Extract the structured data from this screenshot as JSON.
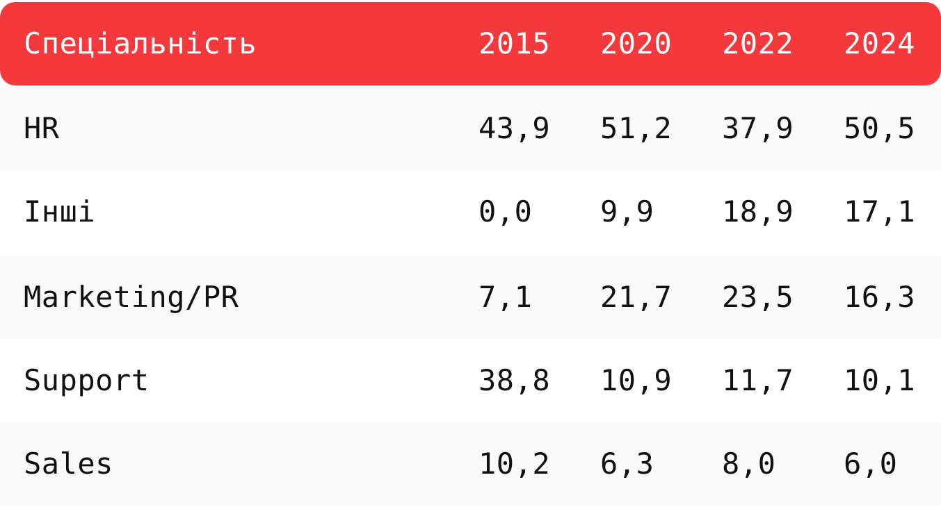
{
  "table": {
    "headers": [
      "Спеціальність",
      "2015",
      "2020",
      "2022",
      "2024"
    ],
    "rows": [
      [
        "HR",
        "43,9",
        "51,2",
        "37,9",
        "50,5"
      ],
      [
        "Інші",
        "0,0",
        "9,9",
        "18,9",
        "17,1"
      ],
      [
        "Marketing/PR",
        "7,1",
        "21,7",
        "23,5",
        "16,3"
      ],
      [
        "Support",
        "38,8",
        "10,9",
        "11,7",
        "10,1"
      ],
      [
        "Sales",
        "10,2",
        "6,3",
        "8,0",
        "6,0"
      ]
    ]
  },
  "colors": {
    "header_background": "#f4393d",
    "header_text": "#ffffff",
    "row_shade": "#f9f9f9",
    "row_plain": "#ffffff",
    "body_text": "#111111"
  }
}
